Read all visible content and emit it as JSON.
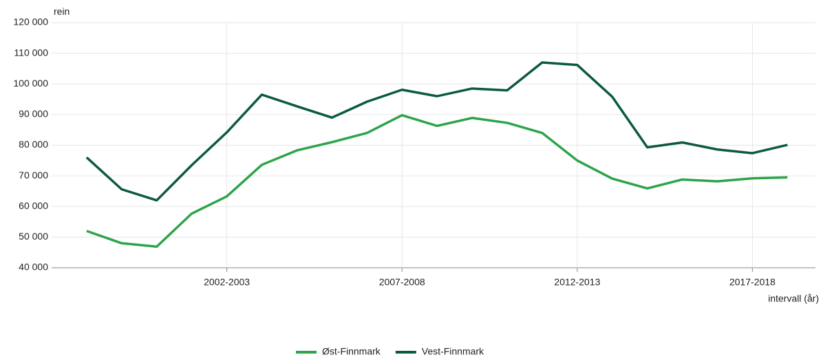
{
  "chart_data": {
    "type": "line",
    "y_label": "rein",
    "x_label": "intervall (år)",
    "categories": [
      null,
      null,
      null,
      null,
      "2002-2003",
      null,
      null,
      null,
      null,
      "2007-2008",
      null,
      null,
      null,
      null,
      "2012-2013",
      null,
      null,
      null,
      null,
      "2017-2018",
      null
    ],
    "series": [
      {
        "name": "Øst-Finnmark",
        "color": "#2ca44a",
        "values": [
          52000,
          48000,
          46900,
          57700,
          63300,
          73600,
          78300,
          81000,
          84000,
          89800,
          86300,
          88900,
          87300,
          84000,
          75000,
          69100,
          65900,
          68800,
          68200,
          69200,
          69500
        ]
      },
      {
        "name": "Vest-Finnmark",
        "color": "#0b5a3f",
        "values": [
          76000,
          65600,
          62000,
          73500,
          84200,
          96500,
          92700,
          89000,
          94200,
          98100,
          96000,
          98500,
          97900,
          107000,
          106200,
          95800,
          79300,
          80900,
          78600,
          77400,
          80100
        ]
      }
    ],
    "ylim": [
      40000,
      120000
    ],
    "yticks": [
      {
        "value": 40000,
        "label": "40 000"
      },
      {
        "value": 50000,
        "label": "50 000"
      },
      {
        "value": 60000,
        "label": "60 000"
      },
      {
        "value": 70000,
        "label": "70 000"
      },
      {
        "value": 80000,
        "label": "80 000"
      },
      {
        "value": 90000,
        "label": "90 000"
      },
      {
        "value": 100000,
        "label": "100 000"
      },
      {
        "value": 110000,
        "label": "110 000"
      },
      {
        "value": 120000,
        "label": "120 000"
      }
    ],
    "grid": true
  }
}
